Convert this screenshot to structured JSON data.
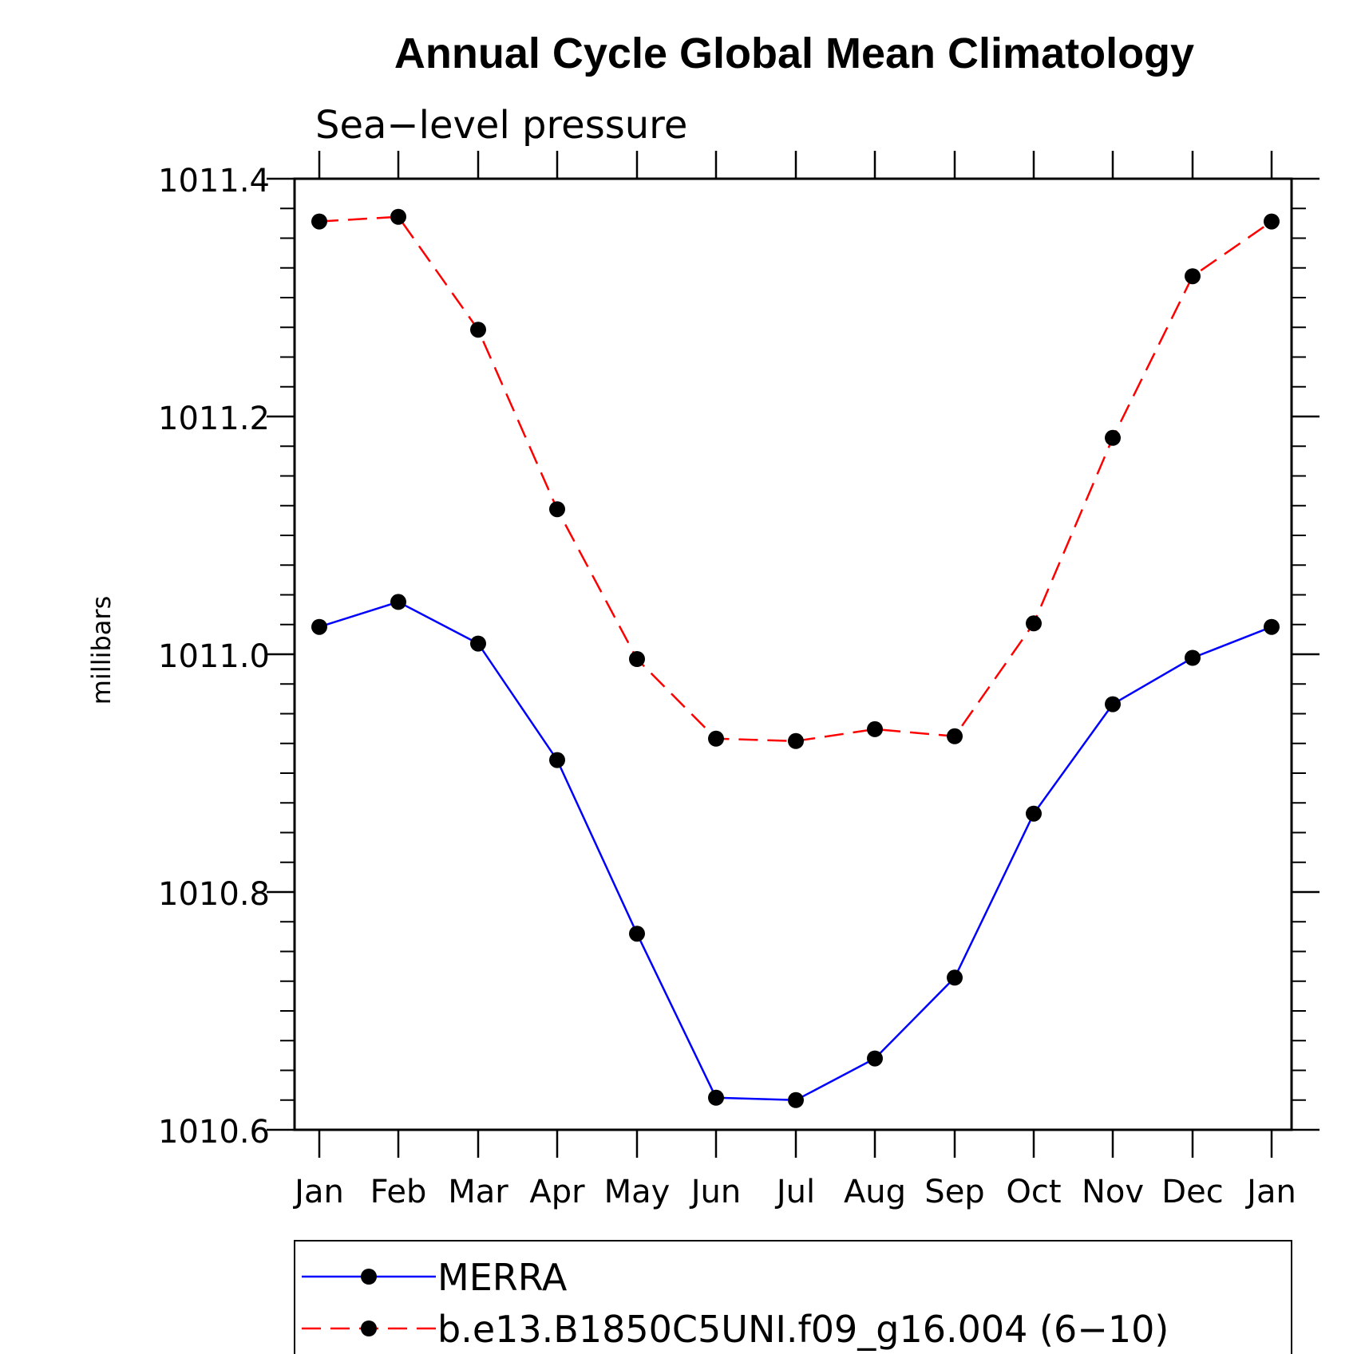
{
  "chart_data": {
    "type": "line",
    "title": "Annual Cycle Global Mean Climatology",
    "subtitle": "Sea−level pressure",
    "xlabel": "",
    "ylabel": "millibars",
    "categories": [
      "Jan",
      "Feb",
      "Mar",
      "Apr",
      "May",
      "Jun",
      "Jul",
      "Aug",
      "Sep",
      "Oct",
      "Nov",
      "Dec",
      "Jan"
    ],
    "ylim": [
      1010.6,
      1011.4
    ],
    "yticks": [
      1010.6,
      1010.8,
      1011.0,
      1011.2,
      1011.4
    ],
    "ytick_labels": [
      "1010.6",
      "1010.8",
      "1011.0",
      "1011.2",
      "1011.4"
    ],
    "grid": false,
    "legend_position": "bottom",
    "series": [
      {
        "name": "MERRA",
        "color": "#0000ff",
        "style": "solid",
        "marker": "circle",
        "values": [
          1011.023,
          1011.044,
          1011.009,
          1010.911,
          1010.765,
          1010.627,
          1010.625,
          1010.66,
          1010.728,
          1010.866,
          1010.958,
          1010.997,
          1011.023
        ]
      },
      {
        "name": "b.e13.B1850C5UNI.f09_g16.004 (6−10)",
        "color": "#ff0000",
        "style": "dashed",
        "marker": "circle",
        "values": [
          1011.364,
          1011.368,
          1011.273,
          1011.122,
          1010.996,
          1010.929,
          1010.927,
          1010.937,
          1010.931,
          1011.026,
          1011.182,
          1011.318,
          1011.364
        ]
      }
    ]
  }
}
